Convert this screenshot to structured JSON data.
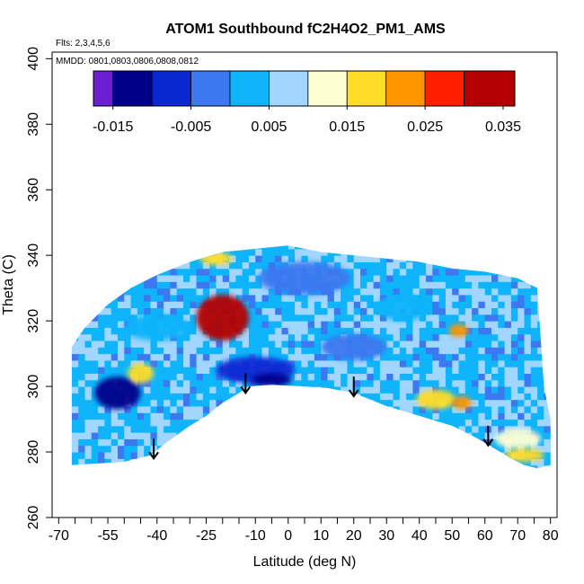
{
  "chart_data": {
    "type": "heatmap",
    "title": "ATOM1 Southbound fC2H4O2_PM1_AMS",
    "subtitle_flights": "Flts: 2,3,4,5,6",
    "subtitle_dates": "MMDD: 0801,0803,0806,0808,0812",
    "xlabel": "Latitude (deg N)",
    "ylabel": "Theta (C)",
    "xlim": [
      -72,
      82
    ],
    "ylim": [
      260,
      402
    ],
    "x_ticks": [
      -70,
      -55,
      -40,
      -25,
      -10,
      0,
      10,
      20,
      30,
      40,
      50,
      60,
      70,
      80
    ],
    "x_tick_labels": [
      "-70",
      "-55",
      "-40",
      "-25",
      "-10",
      "0",
      "10",
      "20",
      "30",
      "40",
      "50",
      "60",
      "70",
      "80"
    ],
    "x_minor_ticks": [
      -65,
      -60,
      -50,
      -45,
      -35,
      -30,
      -20,
      -15,
      -5,
      5,
      15,
      25,
      35,
      45,
      55,
      65,
      75
    ],
    "y_ticks": [
      260,
      280,
      300,
      320,
      340,
      360,
      380,
      400
    ],
    "y_tick_labels": [
      "260",
      "280",
      "300",
      "320",
      "340",
      "360",
      "380",
      "400"
    ],
    "colorbar": {
      "range": [
        -0.0175,
        0.0365
      ],
      "tick_values": [
        -0.015,
        -0.005,
        0.005,
        0.015,
        0.025,
        0.035
      ],
      "tick_labels": [
        "-0.015",
        "-0.005",
        "0.005",
        "0.015",
        "0.025",
        "0.035"
      ],
      "bins": [
        {
          "from": -0.0175,
          "to": -0.015,
          "color": "#6a1fd0"
        },
        {
          "from": -0.015,
          "to": -0.01,
          "color": "#00008b"
        },
        {
          "from": -0.01,
          "to": -0.005,
          "color": "#0a28d2"
        },
        {
          "from": -0.005,
          "to": 0.0,
          "color": "#3c78f0"
        },
        {
          "from": 0.0,
          "to": 0.005,
          "color": "#0fb4fa"
        },
        {
          "from": 0.005,
          "to": 0.01,
          "color": "#a0d6ff"
        },
        {
          "from": 0.01,
          "to": 0.015,
          "color": "#ffffd2"
        },
        {
          "from": 0.015,
          "to": 0.02,
          "color": "#ffdc28"
        },
        {
          "from": 0.02,
          "to": 0.025,
          "color": "#ff9600"
        },
        {
          "from": 0.025,
          "to": 0.03,
          "color": "#ff1e00"
        },
        {
          "from": 0.03,
          "to": 0.0365,
          "color": "#b40000"
        }
      ]
    },
    "ground_boundary": [
      [
        -66,
        276
      ],
      [
        -50,
        277
      ],
      [
        -42,
        279
      ],
      [
        -37,
        283
      ],
      [
        -30,
        288
      ],
      [
        -25,
        291
      ],
      [
        -20,
        295
      ],
      [
        -15,
        298
      ],
      [
        -12,
        300
      ],
      [
        -5,
        300.5
      ],
      [
        5,
        300
      ],
      [
        12,
        299.5
      ],
      [
        20,
        298
      ],
      [
        30,
        294
      ],
      [
        40,
        291
      ],
      [
        50,
        288
      ],
      [
        58,
        284
      ],
      [
        63,
        281
      ],
      [
        68,
        278
      ],
      [
        72,
        276
      ],
      [
        76,
        275
      ]
    ],
    "top_boundary": [
      [
        -66,
        312
      ],
      [
        -62,
        318
      ],
      [
        -55,
        325
      ],
      [
        -48,
        330
      ],
      [
        -40,
        334
      ],
      [
        -30,
        338
      ],
      [
        -20,
        341
      ],
      [
        -10,
        342
      ],
      [
        0,
        343
      ],
      [
        10,
        341
      ],
      [
        20,
        340
      ],
      [
        30,
        339
      ],
      [
        40,
        338
      ],
      [
        50,
        336
      ],
      [
        60,
        335
      ],
      [
        70,
        333
      ],
      [
        76,
        330
      ],
      [
        78,
        300
      ],
      [
        80,
        290
      ],
      [
        80,
        276
      ]
    ],
    "anomalies": [
      {
        "lat": -20,
        "theta": 321,
        "rx": 8,
        "ry": 7,
        "value": 0.034
      },
      {
        "lat": -52,
        "theta": 298,
        "rx": 7,
        "ry": 5,
        "value": -0.013
      },
      {
        "lat": -45,
        "theta": 304,
        "rx": 4,
        "ry": 3,
        "value": 0.018
      },
      {
        "lat": -10,
        "theta": 305,
        "rx": 12,
        "ry": 4,
        "value": -0.006
      },
      {
        "lat": 5,
        "theta": 333,
        "rx": 14,
        "ry": 5,
        "value": -0.005
      },
      {
        "lat": 20,
        "theta": 312,
        "rx": 10,
        "ry": 4,
        "value": -0.004
      },
      {
        "lat": 45,
        "theta": 296,
        "rx": 6,
        "ry": 3,
        "value": 0.016
      },
      {
        "lat": 53,
        "theta": 295,
        "rx": 3,
        "ry": 2,
        "value": 0.022
      },
      {
        "lat": 70,
        "theta": 284,
        "rx": 7,
        "ry": 3,
        "value": 0.014
      },
      {
        "lat": 72,
        "theta": 279,
        "rx": 6,
        "ry": 2,
        "value": 0.016
      },
      {
        "lat": 52,
        "theta": 317,
        "rx": 3,
        "ry": 2,
        "value": 0.024
      },
      {
        "lat": -22,
        "theta": 339,
        "rx": 5,
        "ry": 2,
        "value": 0.015
      },
      {
        "lat": -5,
        "theta": 302,
        "rx": 6,
        "ry": 2,
        "value": -0.011
      },
      {
        "lat": 35,
        "theta": 324,
        "rx": 8,
        "ry": 4,
        "value": 0.001
      },
      {
        "lat": -40,
        "theta": 318,
        "rx": 10,
        "ry": 4,
        "value": 0.004
      }
    ],
    "arrows": [
      {
        "lat": -41,
        "theta_top": 284,
        "theta_tip": 278
      },
      {
        "lat": -13,
        "theta_top": 304,
        "theta_tip": 298
      },
      {
        "lat": 20,
        "theta_top": 303,
        "theta_tip": 297
      },
      {
        "lat": 61,
        "theta_top": 288,
        "theta_tip": 282
      }
    ]
  }
}
